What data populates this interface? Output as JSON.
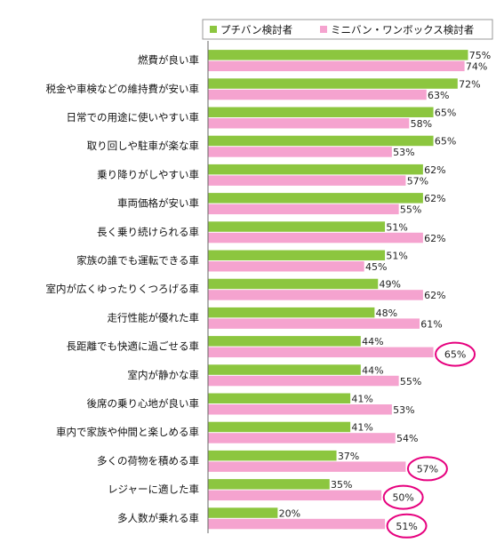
{
  "chart_data": {
    "type": "bar",
    "orientation": "horizontal",
    "categories": [
      "燃費が良い車",
      "税金や車検などの維持費が安い車",
      "日常での用途に使いやすい車",
      "取り回しや駐車が楽な車",
      "乗り降りがしやすい車",
      "車両価格が安い車",
      "長く乗り続けられる車",
      "家族の誰でも運転できる車",
      "室内が広くゆったりくつろげる車",
      "走行性能が優れた車",
      "長距離でも快適に過ごせる車",
      "室内が静かな車",
      "後席の乗り心地が良い車",
      "車内で家族や仲間と楽しめる車",
      "多くの荷物を積める車",
      "レジャーに適した車",
      "多人数が乗れる車"
    ],
    "series": [
      {
        "name": "プチバン検討者",
        "color": "#8cc63f",
        "values": [
          75,
          72,
          65,
          65,
          62,
          62,
          51,
          51,
          49,
          48,
          44,
          44,
          41,
          41,
          37,
          35,
          20
        ]
      },
      {
        "name": "ミニバン・ワンボックス検討者",
        "color": "#f5a3cf",
        "values": [
          74,
          63,
          58,
          53,
          57,
          55,
          62,
          45,
          62,
          61,
          65,
          55,
          53,
          54,
          57,
          50,
          51
        ]
      }
    ],
    "value_suffix": "%",
    "xlim": [
      0,
      75
    ],
    "legend_position": "top-right",
    "highlight_color": "#e6007e",
    "highlighted": [
      {
        "category_index": 10,
        "series_index": 1
      },
      {
        "category_index": 14,
        "series_index": 1
      },
      {
        "category_index": 15,
        "series_index": 1
      },
      {
        "category_index": 16,
        "series_index": 1
      }
    ]
  }
}
